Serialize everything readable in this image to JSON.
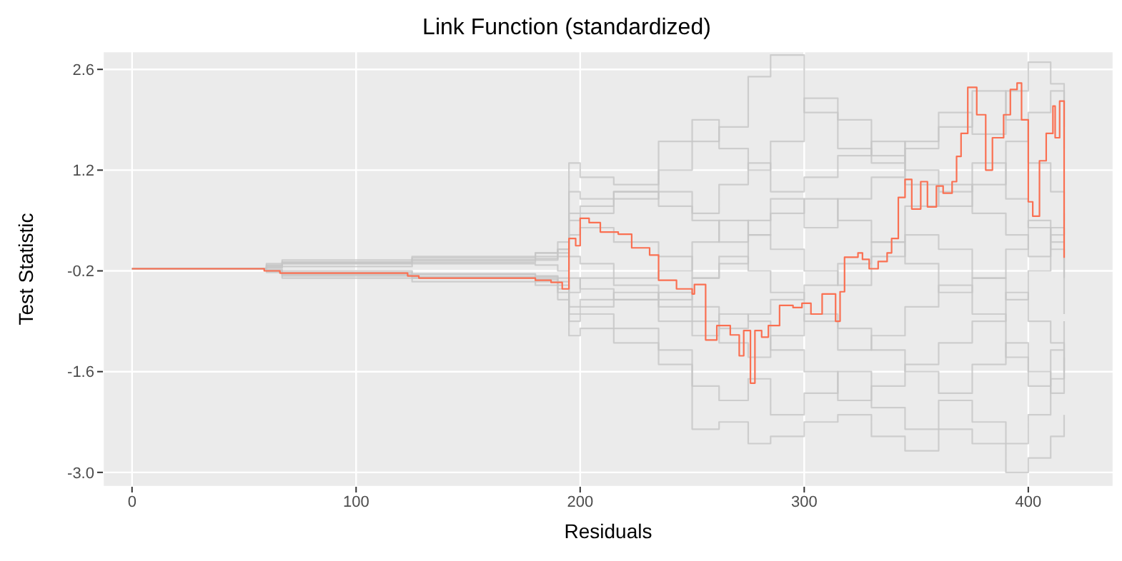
{
  "chart_data": {
    "type": "step",
    "title": "Link Function (standardized)",
    "xlabel": "Residuals",
    "ylabel": "Test Statistic",
    "xlim": [
      -13,
      438
    ],
    "ylim": [
      -3.2,
      2.85
    ],
    "xticks": [
      0,
      100,
      200,
      300,
      400
    ],
    "yticks": [
      {
        "value": -3,
        "label": "-3.0"
      },
      -1.6,
      -0.2,
      1.2,
      2.6
    ],
    "grid": true,
    "legend": false,
    "marker": "none",
    "line_style": "solid",
    "x": [
      0,
      60,
      67,
      125,
      180,
      190,
      195,
      200,
      215,
      235,
      250,
      262,
      275,
      285,
      300,
      315,
      330,
      345,
      360,
      375,
      390,
      400,
      410,
      416
    ],
    "series": [
      {
        "color": "#c6c6c6",
        "values": [
          -0.17,
          -0.12,
          -0.05,
          0.0,
          0.05,
          0.2,
          1.3,
          1.1,
          1.0,
          1.2,
          1.6,
          1.8,
          2.5,
          2.8,
          2.0,
          1.5,
          1.3,
          1.6,
          2.0,
          1.7,
          2.3,
          2.7,
          2.4,
          1.8
        ]
      },
      {
        "color": "#c6c6c6",
        "values": [
          -0.17,
          -0.2,
          -0.25,
          -0.3,
          -0.35,
          -0.5,
          -0.9,
          -0.8,
          -1.0,
          -1.3,
          -2.4,
          -2.3,
          -2.6,
          -2.5,
          -2.3,
          -2.2,
          -2.5,
          -2.7,
          -2.4,
          -2.6,
          -3.0,
          -2.8,
          -2.5,
          -2.2
        ]
      },
      {
        "color": "#c6c6c6",
        "values": [
          -0.17,
          -0.1,
          -0.08,
          -0.02,
          0.05,
          0.1,
          0.6,
          0.7,
          0.8,
          0.9,
          0.6,
          1.0,
          1.3,
          0.9,
          1.1,
          1.4,
          1.6,
          1.2,
          0.9,
          1.3,
          0.8,
          0.4,
          0.1,
          -0.3
        ]
      },
      {
        "color": "#c6c6c6",
        "values": [
          -0.17,
          -0.22,
          -0.3,
          -0.35,
          -0.4,
          -0.6,
          -0.7,
          -0.6,
          -0.5,
          -0.7,
          -0.9,
          -1.2,
          -1.4,
          -1.1,
          -0.8,
          -1.0,
          -1.3,
          -1.6,
          -1.9,
          -1.5,
          -1.2,
          -1.6,
          -1.9,
          -1.4
        ]
      },
      {
        "color": "#c6c6c6",
        "values": [
          -0.17,
          -0.15,
          -0.1,
          -0.05,
          0.0,
          0.1,
          0.3,
          0.4,
          0.2,
          0.0,
          -0.3,
          -0.1,
          0.3,
          0.6,
          0.8,
          0.5,
          0.2,
          0.7,
          1.0,
          0.6,
          0.3,
          0.0,
          0.4,
          0.2
        ]
      },
      {
        "color": "#c6c6c6",
        "values": [
          -0.17,
          -0.2,
          -0.27,
          -0.3,
          -0.32,
          -0.4,
          -0.5,
          -0.3,
          -0.4,
          -0.6,
          -0.3,
          0.0,
          -0.2,
          -0.5,
          -0.9,
          -1.3,
          -1.1,
          -0.7,
          -0.4,
          -0.8,
          -1.4,
          -1.8,
          -1.3,
          -0.9
        ]
      },
      {
        "color": "#c6c6c6",
        "values": [
          -0.17,
          -0.14,
          -0.1,
          -0.08,
          -0.05,
          0.05,
          0.9,
          0.8,
          0.9,
          1.6,
          1.9,
          1.5,
          1.2,
          1.6,
          2.2,
          1.9,
          1.4,
          1.0,
          0.7,
          1.0,
          1.6,
          2.0,
          2.3,
          1.5
        ]
      },
      {
        "color": "#c6c6c6",
        "values": [
          -0.17,
          -0.2,
          -0.25,
          -0.28,
          -0.3,
          -0.45,
          -1.1,
          -1.0,
          -1.2,
          -1.5,
          -1.8,
          -2.0,
          -1.7,
          -2.2,
          -1.9,
          -1.6,
          -2.1,
          -2.4,
          -2.0,
          -2.3,
          -2.6,
          -2.2,
          -1.7,
          -1.3
        ]
      },
      {
        "color": "#c6c6c6",
        "values": [
          -0.17,
          -0.16,
          -0.14,
          -0.1,
          -0.12,
          -0.2,
          0.0,
          -0.1,
          -0.3,
          -0.2,
          0.2,
          0.5,
          0.3,
          0.1,
          -0.2,
          -0.4,
          0.0,
          0.3,
          0.1,
          -0.3,
          -0.6,
          -0.2,
          0.3,
          0.6
        ]
      },
      {
        "color": "#c6c6c6",
        "values": [
          -0.17,
          -0.18,
          -0.2,
          -0.24,
          -0.27,
          -0.3,
          -0.8,
          -0.7,
          -0.6,
          -0.9,
          -1.1,
          -0.8,
          -0.9,
          -1.3,
          -1.6,
          -2.0,
          -1.8,
          -1.5,
          -1.2,
          -0.9,
          -0.5,
          -0.9,
          -1.2,
          -1.6
        ]
      },
      {
        "color": "#c6c6c6",
        "values": [
          -0.17,
          -0.13,
          -0.08,
          -0.05,
          -0.03,
          0.0,
          0.5,
          0.6,
          0.9,
          0.7,
          0.5,
          0.2,
          0.5,
          0.8,
          0.4,
          0.8,
          1.1,
          1.5,
          1.8,
          2.3,
          1.9,
          1.3,
          0.9,
          0.5
        ]
      },
      {
        "color": "#c6c6c6",
        "values": [
          -0.17,
          -0.2,
          -0.22,
          -0.25,
          -0.28,
          -0.35,
          -0.3,
          -0.45,
          -0.6,
          -0.5,
          -0.7,
          -1.0,
          -0.8,
          -0.6,
          -0.4,
          -0.1,
          0.2,
          -0.1,
          -0.5,
          -0.3,
          0.1,
          0.5,
          0.2,
          -0.8
        ]
      },
      {
        "color": "#fa7052",
        "x": [
          0,
          59,
          66,
          123,
          128,
          180,
          187,
          192,
          195,
          198,
          200,
          204,
          209,
          217,
          223,
          231,
          235,
          243,
          250,
          251,
          256,
          261,
          267,
          271,
          273,
          276,
          278,
          281,
          284,
          289,
          295,
          299,
          303,
          308,
          314,
          316,
          318,
          324,
          326,
          329,
          333,
          337,
          339,
          342,
          345,
          348,
          352,
          355,
          359,
          362,
          366,
          368,
          370,
          373,
          377,
          381,
          384,
          389,
          392,
          395,
          397,
          400,
          402,
          405,
          408,
          411,
          412,
          414,
          416
        ],
        "values": [
          -0.17,
          -0.2,
          -0.23,
          -0.27,
          -0.3,
          -0.33,
          -0.36,
          -0.45,
          0.25,
          0.15,
          0.53,
          0.47,
          0.34,
          0.31,
          0.12,
          0.02,
          -0.33,
          -0.45,
          -0.52,
          -0.39,
          -1.16,
          -0.96,
          -1.09,
          -1.38,
          -1.03,
          -1.76,
          -1.03,
          -1.12,
          -0.96,
          -0.68,
          -0.71,
          -0.65,
          -0.8,
          -0.52,
          -0.9,
          -0.49,
          -0.01,
          0.05,
          -0.04,
          -0.17,
          -0.07,
          0.05,
          0.25,
          0.82,
          1.07,
          0.66,
          1.04,
          0.69,
          0.98,
          0.88,
          1.04,
          1.39,
          1.71,
          2.35,
          1.97,
          1.2,
          1.65,
          1.97,
          2.32,
          2.41,
          1.9,
          0.76,
          0.56,
          1.33,
          1.71,
          2.09,
          1.65,
          2.16,
          -0.02
        ]
      }
    ]
  }
}
